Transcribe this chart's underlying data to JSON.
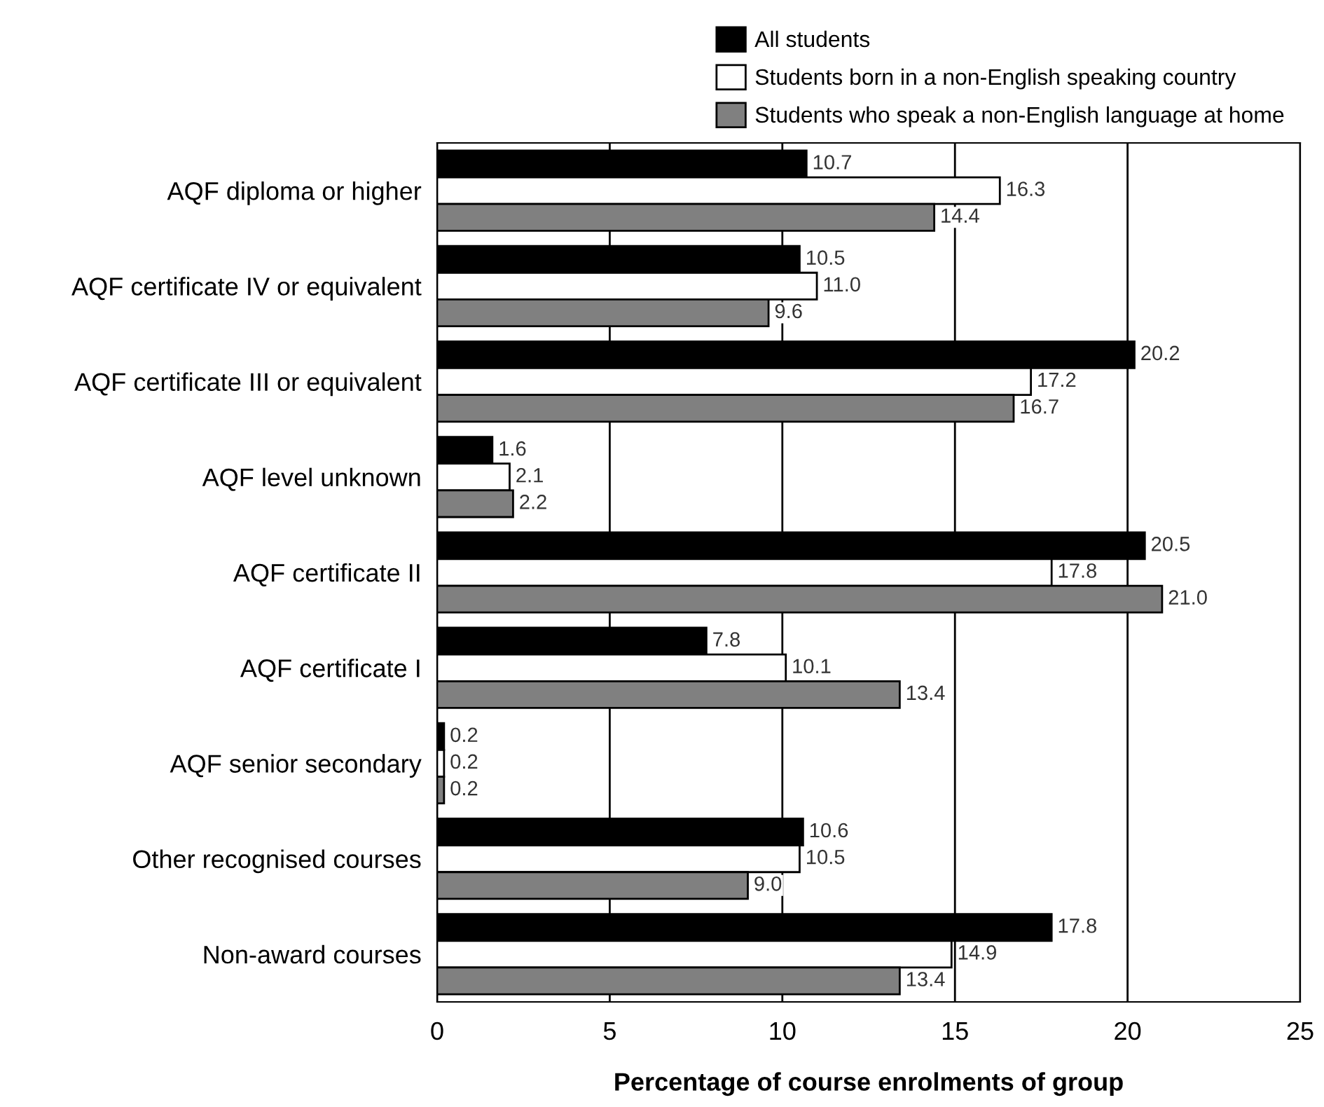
{
  "chart_data": {
    "type": "bar",
    "orientation": "horizontal",
    "xlabel": "Percentage of course enrolments of group",
    "categories": [
      "AQF diploma or higher",
      "AQF certificate IV or equivalent",
      "AQF certificate III or equivalent",
      "AQF level unknown",
      "AQF certificate II",
      "AQF certificate I",
      "AQF senior secondary",
      "Other recognised courses",
      "Non-award courses"
    ],
    "series": [
      {
        "name": "All students",
        "color": "#000000",
        "values": [
          10.7,
          10.5,
          20.2,
          1.6,
          20.5,
          7.8,
          0.2,
          10.6,
          17.8
        ],
        "value_labels": [
          "10.7",
          "10.5",
          "20.2",
          "1.6",
          "20.5",
          "7.8",
          "0.2",
          "10.6",
          "17.8"
        ]
      },
      {
        "name": "Students born in a non-English speaking country",
        "color": "#ffffff",
        "values": [
          16.3,
          11.0,
          17.2,
          2.1,
          17.8,
          10.1,
          0.2,
          10.5,
          14.9
        ],
        "value_labels": [
          "16.3",
          "11.0",
          "17.2",
          "2.1",
          "17.8",
          "10.1",
          "0.2",
          "10.5",
          "14.9"
        ]
      },
      {
        "name": "Students who speak a non-English language at home",
        "color": "#808080",
        "values": [
          14.4,
          9.6,
          16.7,
          2.2,
          21.0,
          13.4,
          0.2,
          9.0,
          13.4
        ],
        "value_labels": [
          "14.4",
          "9.6",
          "16.7",
          "2.2",
          "21.0",
          "13.4",
          "0.2",
          "9.0",
          "13.4"
        ]
      }
    ],
    "xlim": [
      0,
      25
    ],
    "xticks": [
      0,
      5,
      10,
      15,
      20,
      25
    ],
    "grid": "x",
    "legend": "top right"
  }
}
